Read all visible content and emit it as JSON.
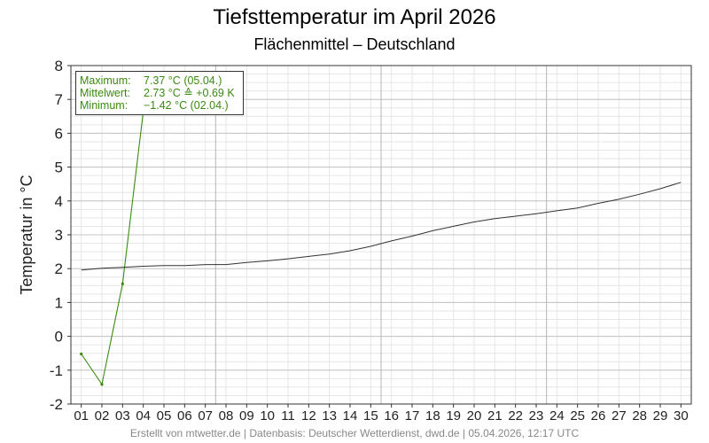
{
  "title": "Tiefsttemperatur im April 2026",
  "subtitle": "Flächenmittel – Deutschland",
  "footer": "Erstellt von mtwetter.de | Datenbasis: Deutscher Wetterdienst, dwd.de | 05.04.2026, 12:17 UTC",
  "stats": {
    "max_label": "Maximum:",
    "max_value": "7.37 °C",
    "max_date": "(05.04.)",
    "mean_label": "Mittelwert:",
    "mean_value": "2.73 °C",
    "mean_delta": "≙ +0.69 K",
    "min_label": "Minimum:",
    "min_value": "−1.42 °C",
    "min_date": "(02.04.)"
  },
  "chart_data": {
    "type": "line",
    "title": "Tiefsttemperatur im April 2026",
    "subtitle": "Flächenmittel – Deutschland",
    "xlabel": "",
    "ylabel": "Temperatur in °C",
    "ylim": [
      -2,
      8
    ],
    "xlim": [
      0.5,
      30.5
    ],
    "grid": true,
    "categories": [
      "01",
      "02",
      "03",
      "04",
      "05",
      "06",
      "07",
      "08",
      "09",
      "10",
      "11",
      "12",
      "13",
      "14",
      "15",
      "16",
      "17",
      "18",
      "19",
      "20",
      "21",
      "22",
      "23",
      "24",
      "25",
      "26",
      "27",
      "28",
      "29",
      "30"
    ],
    "yticks": [
      "-2",
      "-1",
      "0",
      "1",
      "2",
      "3",
      "4",
      "5",
      "6",
      "7",
      "8"
    ],
    "series": [
      {
        "role": "observed",
        "color": "#3a8a10",
        "x": [
          1,
          2,
          3,
          4,
          5
        ],
        "values": [
          -0.52,
          -1.42,
          1.55,
          6.65,
          7.37
        ]
      },
      {
        "role": "climate-mean",
        "color": "#333333",
        "x": [
          1,
          2,
          3,
          4,
          5,
          6,
          7,
          8,
          9,
          10,
          11,
          12,
          13,
          14,
          15,
          16,
          17,
          18,
          19,
          20,
          21,
          22,
          23,
          24,
          25,
          26,
          27,
          28,
          29,
          30
        ],
        "values": [
          1.96,
          2.01,
          2.04,
          2.07,
          2.09,
          2.09,
          2.12,
          2.12,
          2.18,
          2.23,
          2.29,
          2.36,
          2.43,
          2.53,
          2.66,
          2.82,
          2.96,
          3.12,
          3.25,
          3.38,
          3.48,
          3.55,
          3.62,
          3.71,
          3.79,
          3.93,
          4.05,
          4.2,
          4.36,
          4.55
        ]
      }
    ]
  }
}
